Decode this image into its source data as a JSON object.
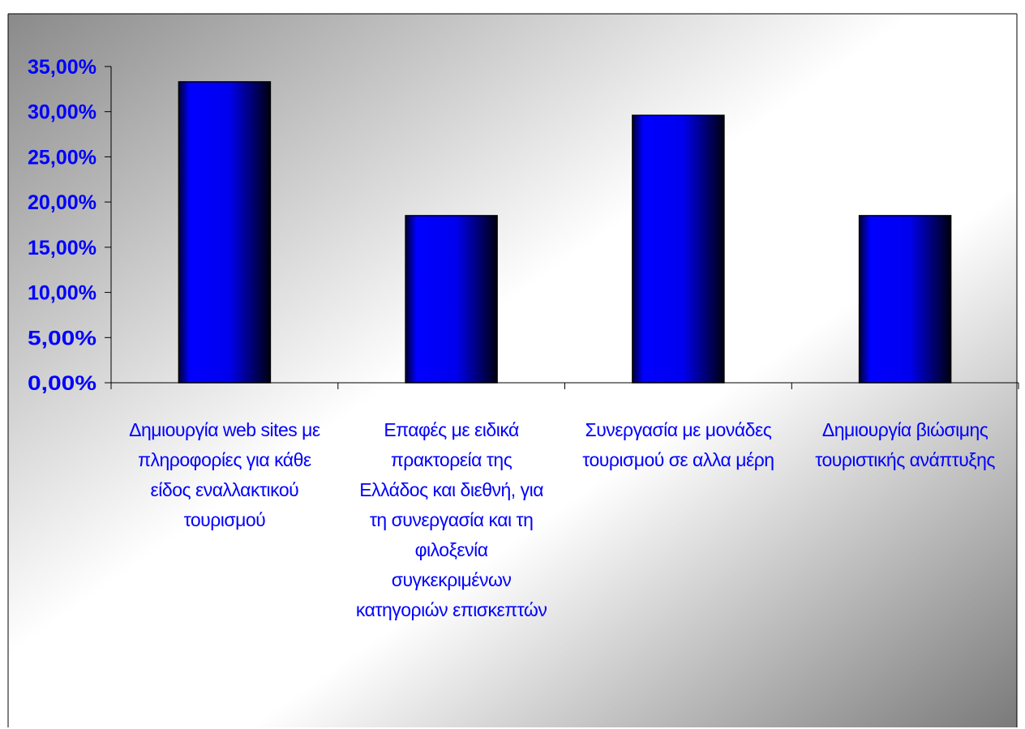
{
  "chart_data": {
    "type": "bar",
    "title": "",
    "xlabel": "",
    "ylabel": "",
    "categories": [
      "Δημιουργία web sites με\nπληροφορίες για κάθε\nείδος εναλλακτικού\nτουρισμού",
      "Επαφές με ειδικά\nπρακτορεία της\nΕλλάδος και διεθνή, για\nτη συνεργασία και τη\nφιλοξενία\nσυγκεκριμένων\nκατηγοριών επισκεπτών",
      "Συνεργασία με μονάδες\nτουρισμού σε αλλα μέρη",
      "Δημιουργία βιώσιμης\nτουριστικής ανάπτυξης"
    ],
    "values": [
      33.3,
      18.5,
      29.6,
      18.5
    ],
    "ylim": [
      0,
      35
    ],
    "yticks": [
      "0,00%",
      "5,00%",
      "10,00%",
      "15,00%",
      "20,00%",
      "25,00%",
      "30,00%",
      "35,00%"
    ],
    "grid": false,
    "legend": "none",
    "colors": {
      "bar_light": "#0000ff",
      "bar_dark": "#000000",
      "tick_text": "#0000ff",
      "category_text": "#0000ff",
      "background_light": "#ffffff",
      "background_dark": "#8a8a8a"
    }
  }
}
